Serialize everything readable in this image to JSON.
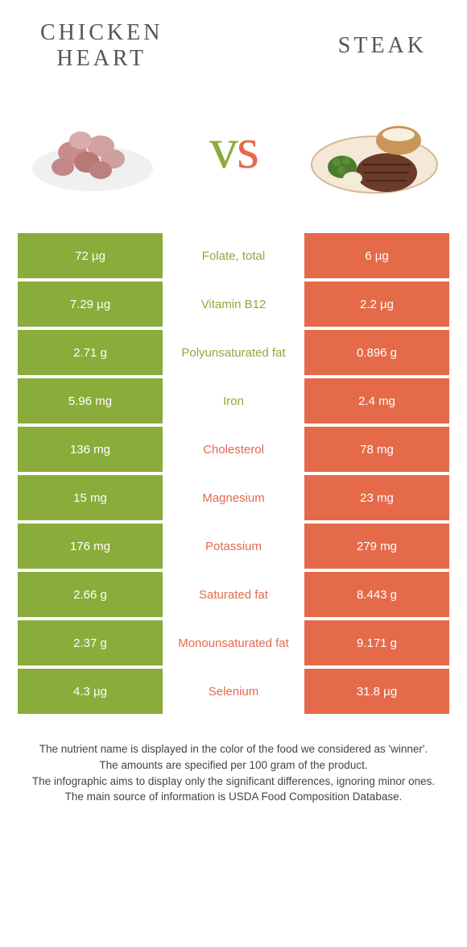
{
  "header": {
    "left_title_line1": "Chicken",
    "left_title_line2": "heart",
    "right_title": "Steak"
  },
  "vs": {
    "v": "v",
    "s": "s"
  },
  "colors": {
    "left": "#8aac3a",
    "right": "#e46a4a",
    "title": "#555555",
    "footnote": "#444444"
  },
  "table": {
    "rows": [
      {
        "left": "72 µg",
        "label": "Folate, total",
        "right": "6 µg",
        "winner": "left"
      },
      {
        "left": "7.29 µg",
        "label": "Vitamin B12",
        "right": "2.2 µg",
        "winner": "left"
      },
      {
        "left": "2.71 g",
        "label": "Polyunsaturated fat",
        "right": "0.896 g",
        "winner": "left"
      },
      {
        "left": "5.96 mg",
        "label": "Iron",
        "right": "2.4 mg",
        "winner": "left"
      },
      {
        "left": "136 mg",
        "label": "Cholesterol",
        "right": "78 mg",
        "winner": "right"
      },
      {
        "left": "15 mg",
        "label": "Magnesium",
        "right": "23 mg",
        "winner": "right"
      },
      {
        "left": "176 mg",
        "label": "Potassium",
        "right": "279 mg",
        "winner": "right"
      },
      {
        "left": "2.66 g",
        "label": "Saturated fat",
        "right": "8.443 g",
        "winner": "right"
      },
      {
        "left": "2.37 g",
        "label": "Monounsaturated fat",
        "right": "9.171 g",
        "winner": "right"
      },
      {
        "left": "4.3 µg",
        "label": "Selenium",
        "right": "31.8 µg",
        "winner": "right"
      }
    ]
  },
  "footnote": {
    "line1": "The nutrient name is displayed in the color of the food we considered as 'winner'.",
    "line2": "The amounts are specified per 100 gram of the product.",
    "line3": "The infographic aims to display only the significant differences, ignoring minor ones.",
    "line4": "The main source of information is USDA Food Composition Database."
  }
}
